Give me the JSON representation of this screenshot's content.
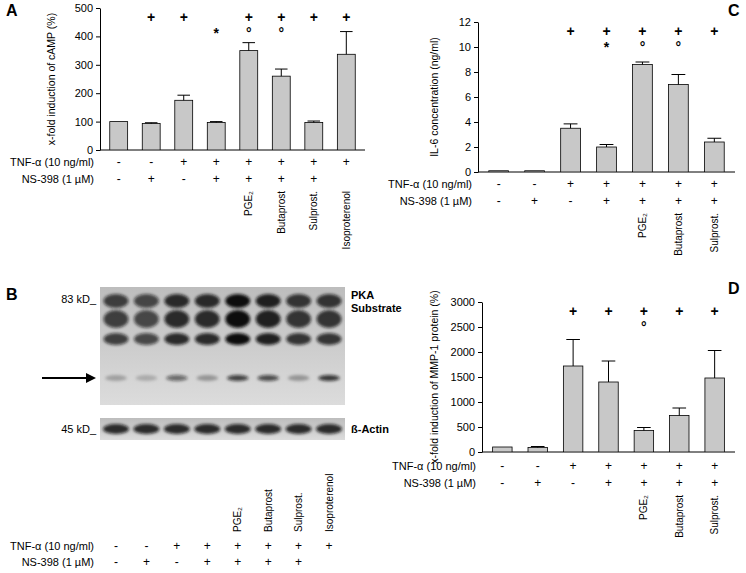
{
  "chart_data": [
    {
      "type": "bar",
      "title": "A",
      "y_label": "x-fold induction of cAMP (%)",
      "categories": [
        null,
        null,
        null,
        null,
        "PGE₂",
        "Butaprost",
        "Sulprost.",
        "Isoproterenol"
      ],
      "values": [
        100,
        93,
        175,
        97,
        350,
        260,
        97,
        337
      ],
      "errors": [
        null,
        3,
        18,
        3,
        28,
        25,
        5,
        80
      ],
      "color": "#c8c8c8",
      "ylim": [
        0,
        500
      ],
      "yticks": [
        0,
        100,
        200,
        300,
        400,
        500
      ],
      "top_marks": [
        null,
        "+",
        "+",
        null,
        "+",
        "+",
        "+",
        "+"
      ],
      "significance": [
        null,
        null,
        null,
        "*",
        "°",
        "°",
        null,
        null
      ],
      "treatments": [
        {
          "label": "TNF-α (10 ng/ml)",
          "values": [
            "-",
            "-",
            "+",
            "+",
            "+",
            "+",
            "+",
            "+"
          ]
        },
        {
          "label": "NS-398 (1 µM)",
          "values": [
            "-",
            "+",
            "-",
            "+",
            "+",
            "+",
            "+",
            null
          ]
        }
      ]
    },
    {
      "type": "blot",
      "title": "B",
      "categories": [
        null,
        null,
        null,
        null,
        "PGE₂",
        "Butaprost",
        "Sulprost.",
        "Isoproterenol"
      ],
      "blots": [
        {
          "name": "PKA Substrate",
          "size_label": "83 kD_",
          "bands": [
            0.75,
            0.7,
            0.85,
            0.85,
            1.0,
            0.9,
            0.8,
            0.8
          ],
          "arrow_band": [
            0.25,
            0.2,
            0.55,
            0.3,
            0.75,
            0.7,
            0.3,
            0.8
          ]
        },
        {
          "name": "ß-Actin",
          "size_label": "45 kD_",
          "bands": [
            0.85,
            0.85,
            0.85,
            0.85,
            0.85,
            0.85,
            0.85,
            0.85
          ]
        }
      ],
      "treatments": [
        {
          "label": "TNF-α (10 ng/ml)",
          "values": [
            "-",
            "-",
            "+",
            "+",
            "+",
            "+",
            "+",
            "+"
          ]
        },
        {
          "label": "NS-398 (1 µM)",
          "values": [
            "-",
            "+",
            "-",
            "+",
            "+",
            "+",
            "+",
            null
          ]
        }
      ]
    },
    {
      "type": "bar",
      "title": "C",
      "y_label": "IL-6 concentration (ng/ml)",
      "categories": [
        null,
        null,
        null,
        null,
        "PGE₂",
        "Butaprost",
        "Sulprost."
      ],
      "values": [
        0.1,
        0.1,
        3.5,
        2.0,
        8.6,
        7.0,
        2.4
      ],
      "errors": [
        null,
        null,
        0.35,
        0.2,
        0.2,
        0.8,
        0.3
      ],
      "color": "#c8c8c8",
      "ylim": [
        0,
        12
      ],
      "yticks": [
        0,
        2,
        4,
        6,
        8,
        10,
        12
      ],
      "top_marks": [
        null,
        null,
        "+",
        "+",
        "+",
        "+",
        "+"
      ],
      "significance": [
        null,
        null,
        null,
        "*",
        "°",
        "°",
        null
      ],
      "treatments": [
        {
          "label": "TNF-α (10 ng/ml)",
          "values": [
            "-",
            "-",
            "+",
            "+",
            "+",
            "+",
            "+"
          ]
        },
        {
          "label": "NS-398 (1 µM)",
          "values": [
            "-",
            "+",
            "-",
            "+",
            "+",
            "+",
            "+"
          ]
        }
      ]
    },
    {
      "type": "bar",
      "title": "D",
      "y_label": "x-fold induction of MMP-1 protein (%)",
      "categories": [
        null,
        null,
        null,
        null,
        "PGE₂",
        "Butaprost",
        "Sulprost."
      ],
      "values": [
        100,
        90,
        1720,
        1400,
        430,
        730,
        1480
      ],
      "errors": [
        null,
        20,
        530,
        420,
        60,
        150,
        550
      ],
      "color": "#c8c8c8",
      "ylim": [
        0,
        3000
      ],
      "yticks": [
        0,
        500,
        1000,
        1500,
        2000,
        2500,
        3000
      ],
      "top_marks": [
        null,
        null,
        "+",
        "+",
        "+",
        "+",
        "+"
      ],
      "significance": [
        null,
        null,
        null,
        null,
        "°",
        null,
        null
      ],
      "treatments": [
        {
          "label": "TNF-α (10 ng/ml)",
          "values": [
            "-",
            "-",
            "+",
            "+",
            "+",
            "+",
            "+"
          ]
        },
        {
          "label": "NS-398 (1 µM)",
          "values": [
            "-",
            "+",
            "-",
            "+",
            "+",
            "+",
            "+"
          ]
        }
      ]
    }
  ]
}
